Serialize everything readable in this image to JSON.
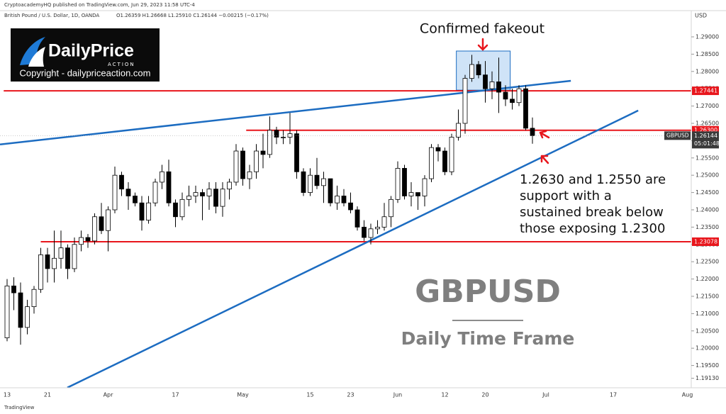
{
  "header": {
    "publisher": "CryptoacademyHQ published on TradingView.com, Jun 29, 2023 11:58 UTC-4",
    "symbol_line": "British Pound / U.S. Dollar, 1D, OANDA",
    "ohlc_line": "O1.26359 H1.26668 L1.25910 C1.26144 −0.00215 (−0.17%)"
  },
  "logo": {
    "brand": "DailyPrice",
    "sub": "ACTION",
    "copyright": "Copyright - dailypriceaction.com"
  },
  "footer": "TradingView",
  "chart_data": {
    "type": "candlestick",
    "axis_label": "USD",
    "up_color": "#ffffff",
    "down_color": "#000000",
    "categories": [
      "13",
      null,
      null,
      null,
      null,
      null,
      "21",
      null,
      null,
      null,
      null,
      null,
      null,
      null,
      null,
      "Apr",
      null,
      null,
      null,
      null,
      null,
      null,
      null,
      null,
      null,
      "17",
      null,
      null,
      null,
      null,
      null,
      null,
      null,
      null,
      null,
      "May",
      null,
      null,
      null,
      null,
      null,
      null,
      null,
      null,
      null,
      "15",
      null,
      null,
      null,
      null,
      null,
      "23",
      null,
      null,
      null,
      null,
      null,
      null,
      "Jun",
      null,
      null,
      null,
      null,
      null,
      null,
      "12",
      null,
      null,
      null,
      null,
      null,
      "20",
      null,
      null,
      null,
      null,
      null,
      null,
      null,
      null,
      "Jul",
      null,
      null,
      null,
      null,
      null,
      null,
      null,
      null,
      null,
      "17",
      null,
      null,
      null,
      null,
      null,
      null,
      null,
      null,
      null,
      null,
      "Aug"
    ],
    "open": [
      1.203,
      1.218,
      1.216,
      1.206,
      1.212,
      1.217,
      1.227,
      1.223,
      1.226,
      1.229,
      1.223,
      1.23,
      1.232,
      1.231,
      1.238,
      1.234,
      1.24,
      1.25,
      1.246,
      1.244,
      1.242,
      1.237,
      1.242,
      1.248,
      1.251,
      1.242,
      1.238,
      1.243,
      1.244,
      1.245,
      1.244,
      1.246,
      1.241,
      1.246,
      1.248,
      1.257,
      1.249,
      1.251,
      1.257,
      1.256,
      1.263,
      1.261,
      1.261,
      1.262,
      1.251,
      1.245,
      1.25,
      1.247,
      1.249,
      1.242,
      1.244,
      1.242,
      1.24,
      1.235,
      1.232,
      1.2345,
      1.235,
      1.238,
      1.243,
      1.252,
      1.244,
      1.245,
      1.244,
      1.249,
      1.258,
      1.257,
      1.251,
      1.261,
      1.265,
      1.278,
      1.282,
      1.279,
      1.275,
      1.277,
      1.274,
      1.272,
      1.271,
      1.275,
      1.26359,
      null,
      null,
      null,
      null,
      null,
      null,
      null,
      null,
      null,
      null,
      null,
      null,
      null,
      null,
      null,
      null,
      null,
      null,
      null,
      null,
      null,
      null,
      null
    ],
    "high": [
      1.22,
      1.2205,
      1.219,
      1.214,
      1.218,
      1.229,
      1.229,
      1.234,
      1.234,
      1.23,
      1.232,
      1.234,
      1.233,
      1.239,
      1.242,
      1.241,
      1.2525,
      1.251,
      1.248,
      1.245,
      1.244,
      1.244,
      1.249,
      1.253,
      1.2545,
      1.243,
      1.245,
      1.247,
      1.247,
      1.246,
      1.248,
      1.248,
      1.248,
      1.249,
      1.259,
      1.258,
      1.253,
      1.259,
      1.262,
      1.267,
      1.264,
      1.263,
      1.268,
      1.263,
      1.252,
      1.252,
      1.255,
      1.251,
      1.249,
      1.247,
      1.246,
      1.245,
      1.241,
      1.237,
      1.236,
      1.237,
      1.242,
      1.244,
      1.254,
      1.253,
      1.248,
      1.245,
      1.25,
      1.259,
      1.259,
      1.258,
      1.262,
      1.269,
      1.279,
      1.2848,
      1.283,
      1.283,
      1.28,
      1.284,
      1.276,
      1.275,
      1.276,
      1.276,
      1.26668,
      null,
      null,
      null,
      null,
      null,
      null,
      null,
      null,
      null,
      null,
      null,
      null,
      null,
      null,
      null,
      null,
      null,
      null,
      null,
      null,
      null,
      null,
      null
    ],
    "low": [
      1.202,
      1.211,
      1.201,
      1.204,
      1.21,
      1.216,
      1.219,
      1.219,
      1.223,
      1.22,
      1.222,
      1.228,
      1.229,
      1.23,
      1.233,
      1.228,
      1.239,
      1.244,
      1.24,
      1.241,
      1.234,
      1.236,
      1.241,
      1.246,
      1.241,
      1.235,
      1.237,
      1.241,
      1.242,
      1.237,
      1.24,
      1.239,
      1.238,
      1.243,
      1.247,
      1.247,
      1.246,
      1.249,
      1.252,
      1.255,
      1.259,
      1.259,
      1.259,
      1.249,
      1.244,
      1.244,
      1.246,
      1.242,
      1.241,
      1.24,
      1.241,
      1.239,
      1.234,
      1.231,
      1.23,
      1.233,
      1.234,
      1.235,
      1.242,
      1.243,
      1.241,
      1.24,
      1.241,
      1.248,
      1.254,
      1.25,
      1.25,
      1.26,
      1.262,
      1.277,
      1.278,
      1.271,
      1.272,
      1.268,
      1.27,
      1.269,
      1.27,
      1.263,
      1.2591,
      null,
      null,
      null,
      null,
      null,
      null,
      null,
      null,
      null,
      null,
      null,
      null,
      null,
      null,
      null,
      null,
      null,
      null,
      null,
      null,
      null,
      null,
      null
    ],
    "close": [
      1.218,
      1.216,
      1.206,
      1.212,
      1.217,
      1.227,
      1.223,
      1.226,
      1.229,
      1.223,
      1.23,
      1.232,
      1.231,
      1.238,
      1.234,
      1.24,
      1.25,
      1.246,
      1.244,
      1.242,
      1.237,
      1.242,
      1.248,
      1.251,
      1.242,
      1.238,
      1.243,
      1.244,
      1.245,
      1.244,
      1.246,
      1.241,
      1.246,
      1.248,
      1.257,
      1.249,
      1.251,
      1.257,
      1.256,
      1.263,
      1.261,
      1.261,
      1.262,
      1.251,
      1.245,
      1.25,
      1.247,
      1.249,
      1.242,
      1.244,
      1.242,
      1.24,
      1.235,
      1.232,
      1.2345,
      1.235,
      1.238,
      1.243,
      1.252,
      1.244,
      1.245,
      1.244,
      1.249,
      1.258,
      1.257,
      1.251,
      1.261,
      1.265,
      1.278,
      1.282,
      1.279,
      1.275,
      1.277,
      1.274,
      1.272,
      1.271,
      1.275,
      1.26359,
      1.26144,
      null,
      null,
      null,
      null,
      null,
      null,
      null,
      null,
      null,
      null,
      null,
      null,
      null,
      null,
      null,
      null,
      null,
      null,
      null,
      null,
      null,
      null,
      null
    ],
    "ylim": [
      1.18856,
      1.29758
    ],
    "yticks": [
      {
        "value": 1.29,
        "label": "1.29000"
      },
      {
        "value": 1.285,
        "label": "1.28500"
      },
      {
        "value": 1.28,
        "label": "1.28000"
      },
      {
        "value": 1.275,
        "label": "1.27500"
      },
      {
        "value": 1.27,
        "label": "1.27000"
      },
      {
        "value": 1.265,
        "label": "1.26500"
      },
      {
        "value": 1.26,
        "label": "1.26000"
      },
      {
        "value": 1.255,
        "label": "1.25500"
      },
      {
        "value": 1.25,
        "label": "1.25000"
      },
      {
        "value": 1.245,
        "label": "1.24500"
      },
      {
        "value": 1.24,
        "label": "1.24000"
      },
      {
        "value": 1.235,
        "label": "1.23500"
      },
      {
        "value": 1.23,
        "label": "1.23000"
      },
      {
        "value": 1.225,
        "label": "1.22500"
      },
      {
        "value": 1.22,
        "label": "1.22000"
      },
      {
        "value": 1.215,
        "label": "1.21500"
      },
      {
        "value": 1.21,
        "label": "1.21000"
      },
      {
        "value": 1.205,
        "label": "1.20500"
      },
      {
        "value": 1.2,
        "label": "1.20000"
      },
      {
        "value": 1.195,
        "label": "1.19500"
      },
      {
        "value": 1.1913,
        "label": "1.19130"
      }
    ],
    "grid": false,
    "levels": [
      {
        "value": 1.27441,
        "label": "1.27441",
        "start": -0.5,
        "color": "#e8161c"
      },
      {
        "value": 1.263,
        "label": "1.26300",
        "start": 35.5,
        "color": "#e8161c"
      },
      {
        "value": 1.23078,
        "label": "1.23078",
        "start": 5,
        "color": "#e8161c"
      }
    ],
    "trendlines": [
      {
        "x": [
          -1.05,
          83.7
        ],
        "y": [
          1.2589,
          1.2773
        ],
        "color": "#1c6cc1"
      },
      {
        "x": [
          8.95,
          93.7
        ],
        "y": [
          1.1886,
          1.2687
        ],
        "color": "#1c6cc1"
      }
    ],
    "highlight": {
      "x": [
        66.7,
        74.7
      ],
      "y": [
        1.2746,
        1.2859
      ],
      "color": "#cfe3f7"
    },
    "last_price": {
      "value": 1.26144,
      "label": "1.26144",
      "symbol": "GBPUSD",
      "countdown": "05:01:48"
    },
    "annotations": {
      "fakeout": "Confirmed fakeout",
      "support": [
        "1.2630 and 1.2550 are",
        "support with a",
        "sustained break below",
        "those exposing 1.2300"
      ],
      "title": "GBPUSD",
      "subtitle": "Daily Time Frame"
    }
  }
}
